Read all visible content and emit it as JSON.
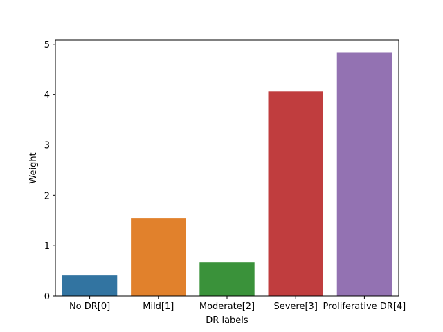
{
  "chart_data": {
    "type": "bar",
    "title": "",
    "xlabel": "DR labels",
    "ylabel": "Weight",
    "categories": [
      "No DR[0]",
      "Mild[1]",
      "Moderate[2]",
      "Severe[3]",
      "Proliferative DR[4]"
    ],
    "values": [
      0.41,
      1.55,
      0.67,
      4.06,
      4.84
    ],
    "colors": [
      "#3274a1",
      "#e1812c",
      "#3a923a",
      "#c03d3e",
      "#9372b2"
    ],
    "yticks": [
      0,
      1,
      2,
      3,
      4,
      5
    ],
    "ylim": [
      0,
      5.08
    ],
    "grid": false,
    "legend": "none"
  }
}
